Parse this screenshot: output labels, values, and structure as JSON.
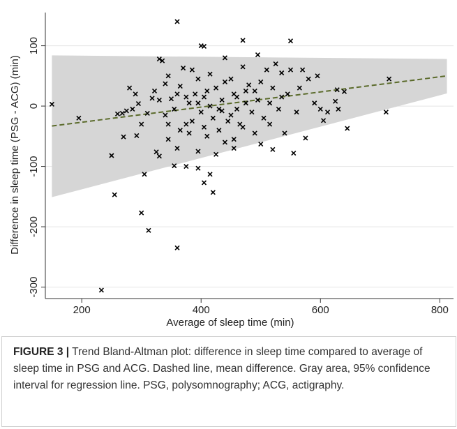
{
  "chart_data": {
    "type": "scatter",
    "xlabel": "Average of sleep time (min)",
    "ylabel": "Difference in sleep time (PSG - ACG) (min)",
    "xlim": [
      139,
      823
    ],
    "ylim": [
      -319,
      155
    ],
    "xticks": [
      200,
      400,
      600,
      800
    ],
    "yticks": [
      -300,
      -200,
      -100,
      0,
      100
    ],
    "grid": true,
    "color": "#000000",
    "band": {
      "color": "#d6d6d6",
      "x": [
        150,
        812
      ],
      "upper": [
        84,
        78
      ],
      "lower": [
        -151,
        21
      ]
    },
    "trend": {
      "color": "#5b6b2b",
      "x": [
        150,
        812
      ],
      "y": [
        -33,
        50
      ]
    },
    "x": [
      150,
      195,
      233,
      250,
      255,
      300,
      305,
      312,
      360,
      360,
      400,
      405,
      470,
      550,
      640,
      710,
      715,
      645,
      605,
      625,
      630,
      628,
      575,
      555,
      500,
      520,
      420,
      405,
      395,
      415,
      355,
      375,
      325,
      330,
      300,
      292,
      270,
      268,
      260,
      280,
      275,
      285,
      290,
      295,
      310,
      318,
      322,
      330,
      335,
      340,
      345,
      350,
      355,
      365,
      370,
      375,
      380,
      385,
      390,
      395,
      400,
      405,
      410,
      415,
      420,
      425,
      430,
      435,
      440,
      445,
      450,
      455,
      460,
      465,
      470,
      475,
      480,
      485,
      490,
      495,
      500,
      505,
      510,
      515,
      520,
      525,
      530,
      535,
      540,
      545,
      550,
      560,
      565,
      570,
      580,
      590,
      595,
      600,
      612,
      345,
      360,
      380,
      395,
      410,
      425,
      440,
      455,
      340,
      365,
      385,
      405,
      430,
      450,
      470,
      490,
      360,
      375,
      395,
      415,
      435,
      455,
      475,
      495,
      515,
      535,
      330,
      345,
      440,
      460
    ],
    "values": [
      3,
      -20,
      -305,
      -82,
      -147,
      -177,
      -113,
      -206,
      140,
      -235,
      100,
      99,
      109,
      108,
      24,
      -10,
      45,
      -37,
      -24,
      8,
      -5,
      27,
      -53,
      -78,
      -63,
      -72,
      -143,
      -127,
      -103,
      -113,
      -99,
      -100,
      -76,
      -83,
      -30,
      -49,
      -51,
      -12,
      -13,
      30,
      -8,
      -5,
      20,
      4,
      -12,
      13,
      25,
      78,
      75,
      37,
      50,
      12,
      -5,
      33,
      63,
      -30,
      5,
      60,
      20,
      45,
      -10,
      15,
      25,
      53,
      -20,
      30,
      -40,
      10,
      80,
      -25,
      45,
      -55,
      15,
      -30,
      65,
      5,
      35,
      -10,
      25,
      85,
      40,
      -20,
      60,
      5,
      30,
      70,
      -5,
      55,
      -45,
      20,
      60,
      -10,
      30,
      60,
      45,
      5,
      50,
      -5,
      -10,
      -55,
      -70,
      -45,
      -75,
      -50,
      -80,
      -60,
      -70,
      -15,
      -40,
      -25,
      -35,
      -5,
      -15,
      -35,
      -45,
      20,
      15,
      5,
      0,
      -8,
      20,
      25,
      10,
      -30,
      15,
      10,
      -30,
      40,
      -5
    ]
  },
  "caption": {
    "label": "FIGURE 3 |",
    "text": "Trend Bland-Altman plot: difference in sleep time compared to average of sleep time in PSG and ACG. Dashed line, mean difference. Gray area, 95% confidence interval for regression line. PSG, polysomnography; ACG, actigraphy."
  }
}
